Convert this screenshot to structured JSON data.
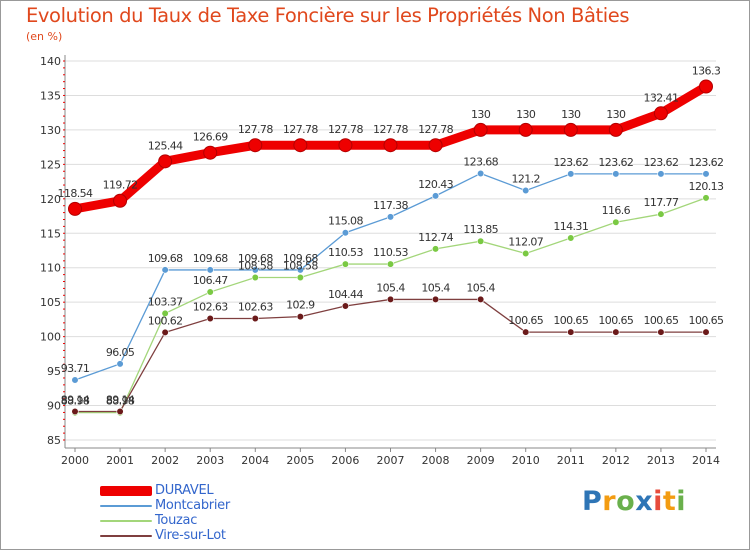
{
  "colors": {
    "title": "#e0481d",
    "legend_text": "#3366cc",
    "axis": "#888888",
    "grid": "#dddddd"
  },
  "chart_data": {
    "type": "line",
    "title": "Evolution du Taux de Taxe Foncière sur les Propriétés Non Bâties",
    "ylabel": "(en %)",
    "xlabel": "",
    "categories": [
      "2000",
      "2001",
      "2002",
      "2003",
      "2004",
      "2005",
      "2006",
      "2007",
      "2008",
      "2009",
      "2010",
      "2011",
      "2012",
      "2013",
      "2014"
    ],
    "ylim": [
      85,
      140
    ],
    "yticks": [
      "85",
      "90",
      "95",
      "100",
      "105",
      "110",
      "115",
      "120",
      "125",
      "130",
      "135",
      "140"
    ],
    "series": [
      {
        "name": "DURAVEL",
        "color": "#ee0000",
        "thick": true,
        "values": [
          118.54,
          119.72,
          125.44,
          126.69,
          127.78,
          127.78,
          127.78,
          127.78,
          127.78,
          130,
          130,
          130,
          130,
          132.41,
          136.3
        ],
        "labels": [
          "118.54",
          "119.72",
          "125.44",
          "126.69",
          "127.78",
          "127.78",
          "127.78",
          "127.78",
          "127.78",
          "130",
          "130",
          "130",
          "130",
          "132.41",
          "136.3"
        ]
      },
      {
        "name": "Montcabrier",
        "color": "#5b9bd5",
        "marker": "#5b9bd5",
        "values": [
          93.71,
          96.05,
          109.68,
          109.68,
          109.68,
          109.68,
          115.08,
          117.38,
          120.43,
          123.68,
          121.2,
          123.62,
          123.62,
          123.62,
          123.62
        ],
        "labels": [
          "93.71",
          "96.05",
          "109.68",
          "109.68",
          "109.68",
          "109.68",
          "115.08",
          "117.38",
          "120.43",
          "123.68",
          "121.2",
          "123.62",
          "123.62",
          "123.62",
          "123.62"
        ]
      },
      {
        "name": "Touzac",
        "color": "#a3d67a",
        "marker": "#7ac943",
        "values": [
          88.98,
          88.98,
          103.37,
          106.47,
          108.58,
          108.58,
          110.53,
          110.53,
          112.74,
          113.85,
          112.07,
          114.31,
          116.6,
          117.77,
          120.13
        ],
        "labels": [
          "88.98",
          "88.98",
          "103.37",
          "106.47",
          "108.58",
          "108.58",
          "110.53",
          "110.53",
          "112.74",
          "113.85",
          "112.07",
          "114.31",
          "116.6",
          "117.77",
          "120.13"
        ]
      },
      {
        "name": "Vire-sur-Lot",
        "color": "#7f3f3f",
        "marker": "#6b1a1a",
        "values": [
          89.14,
          89.14,
          100.62,
          102.63,
          102.63,
          102.9,
          104.44,
          105.4,
          105.4,
          105.4,
          100.65,
          100.65,
          100.65,
          100.65,
          100.65
        ],
        "labels": [
          "89.14",
          "89.14",
          "100.62",
          "102.63",
          "102.63",
          "102.9",
          "104.44",
          "105.4",
          "105.4",
          "105.4",
          "100.65",
          "100.65",
          "100.65",
          "100.65",
          "100.65"
        ]
      }
    ],
    "legend_position": "bottom-left"
  },
  "logo": {
    "text": "Proxiti",
    "letters": [
      "P",
      "r",
      "o",
      "x",
      "i",
      "t",
      "i"
    ],
    "colors": [
      "#2e75b6",
      "#f39c12",
      "#6ab04c",
      "#2e75b6",
      "#e74c3c",
      "#f39c12",
      "#6ab04c"
    ]
  }
}
